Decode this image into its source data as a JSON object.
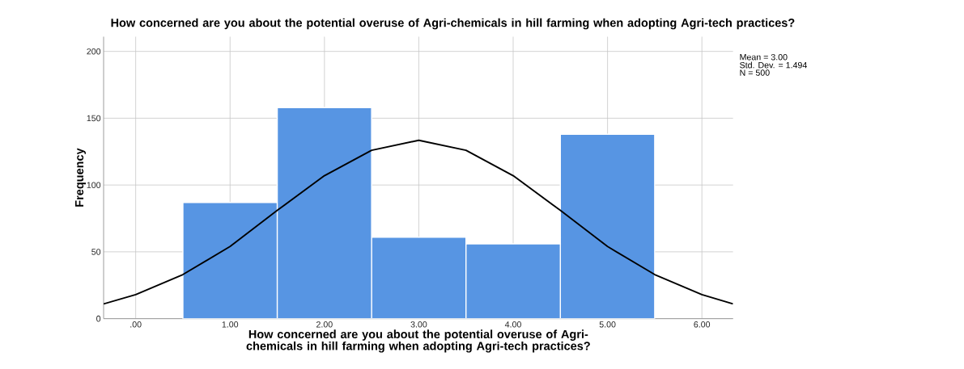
{
  "chart_data": {
    "type": "histogram",
    "title": "How concerned are you about the potential overuse of Agri-chemicals in hill farming when adopting Agri-tech practices?",
    "xlabel": "How concerned are you about the potential overuse of Agri-chemicals in hill farming when adopting Agri-tech practices?",
    "ylabel": "Frequency",
    "bins": [
      0.5,
      1.5,
      2.5,
      3.5,
      4.5,
      5.5
    ],
    "values": [
      87,
      158,
      61,
      56,
      138
    ],
    "color": "#5795e3",
    "series": [
      {
        "type": "line",
        "color": "#000000",
        "x": [
          -0.34,
          0,
          0.5,
          1,
          1.5,
          2,
          2.5,
          3,
          3.5,
          4,
          4.5,
          5,
          5.5,
          6,
          6.33
        ],
        "values": [
          11,
          18,
          33,
          54,
          81,
          107,
          126,
          133.5,
          126,
          107,
          81,
          54,
          33,
          18,
          11
        ]
      }
    ],
    "xlim": [
      -0.34,
      6.33
    ],
    "ylim": [
      0,
      211
    ],
    "xticks": [
      {
        "value": 0,
        "label": ".00"
      },
      {
        "value": 1,
        "label": "1.00"
      },
      {
        "value": 2,
        "label": "2.00"
      },
      {
        "value": 3,
        "label": "3.00"
      },
      {
        "value": 4,
        "label": "4.00"
      },
      {
        "value": 5,
        "label": "5.00"
      },
      {
        "value": 6,
        "label": "6.00"
      }
    ],
    "yticks": [
      0,
      50,
      100,
      150,
      200
    ],
    "grid": true,
    "marker": "none",
    "line_style": "solid",
    "annotations": [
      "Mean = 3.00",
      "Std. Dev. = 1.494",
      "N = 500"
    ]
  }
}
